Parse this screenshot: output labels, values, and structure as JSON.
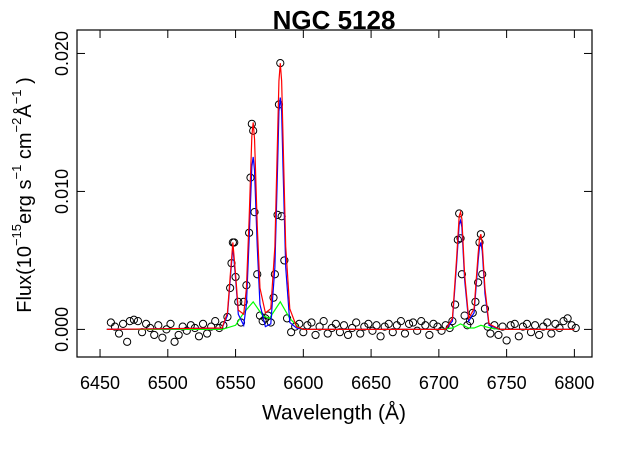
{
  "chart_data": {
    "type": "spectrum",
    "title": "NGC 5128",
    "xlabel": "Wavelength (Å)",
    "ylabel_parts": [
      "Flux(10",
      "−15",
      "erg s",
      "−1",
      " cm",
      "−2",
      "Å",
      "−1",
      " )"
    ],
    "xlim": [
      6433,
      6813
    ],
    "ylim": [
      -0.002,
      0.0217
    ],
    "xticks": [
      6450,
      6500,
      6550,
      6600,
      6650,
      6700,
      6750,
      6800
    ],
    "yticks": [
      {
        "value": 0,
        "label": "0.000"
      },
      {
        "value": 0.01,
        "label": "0.010"
      },
      {
        "value": 0.02,
        "label": "0.020"
      }
    ],
    "series": [
      {
        "mode": "markers",
        "color": "#000000",
        "x": [
          6458,
          6461,
          6464,
          6467,
          6470,
          6472,
          6475,
          6478,
          6481,
          6484,
          6487,
          6490,
          6493,
          6496,
          6499,
          6502,
          6505,
          6508,
          6511,
          6514,
          6517,
          6520,
          6523,
          6526,
          6529,
          6532,
          6535,
          6538,
          6541,
          6544,
          6546,
          6547,
          6548,
          6549,
          6550,
          6552,
          6554,
          6556,
          6558,
          6560,
          6561,
          6562,
          6563,
          6564,
          6566,
          6568,
          6570,
          6572,
          6574,
          6576,
          6578,
          6579,
          6581,
          6582,
          6583,
          6584,
          6586,
          6588,
          6591,
          6594,
          6597,
          6600,
          6603,
          6606,
          6609,
          6612,
          6615,
          6618,
          6621,
          6624,
          6627,
          6630,
          6633,
          6636,
          6639,
          6642,
          6645,
          6648,
          6651,
          6654,
          6657,
          6660,
          6663,
          6666,
          6669,
          6672,
          6675,
          6678,
          6681,
          6684,
          6687,
          6690,
          6693,
          6696,
          6699,
          6702,
          6705,
          6708,
          6710,
          6712,
          6714,
          6715,
          6716,
          6717,
          6719,
          6721,
          6723,
          6725,
          6727,
          6729,
          6730,
          6731,
          6732,
          6734,
          6736,
          6738,
          6741,
          6744,
          6747,
          6750,
          6753,
          6756,
          6759,
          6762,
          6765,
          6768,
          6771,
          6774,
          6777,
          6780,
          6783,
          6786,
          6789,
          6792,
          6795,
          6798,
          6801
        ],
        "values": [
          0.0005,
          0.0002,
          -0.0003,
          0.0004,
          -0.0009,
          0.0006,
          0.0007,
          0.0006,
          -0.0002,
          0.0004,
          0.0001,
          -0.0004,
          0.0003,
          -0.0006,
          0.0,
          0.0004,
          -0.0009,
          -0.0004,
          0.0002,
          -0.0001,
          0.0003,
          0.0001,
          -0.0005,
          0.0004,
          -0.0003,
          0.0002,
          0.0006,
          0.0001,
          0.0003,
          0.0009,
          0.003,
          0.0048,
          0.0063,
          0.0063,
          0.0038,
          0.002,
          0.0005,
          0.002,
          0.0032,
          0.007,
          0.011,
          0.0149,
          0.0144,
          0.0085,
          0.004,
          0.001,
          0.0006,
          0.0008,
          0.001,
          0.0005,
          0.0023,
          0.004,
          0.0083,
          0.0163,
          0.0193,
          0.0082,
          0.005,
          0.0008,
          -0.0002,
          0.0002,
          0.0004,
          -0.0002,
          0.0003,
          0.0005,
          -0.0004,
          0.0002,
          0.0006,
          -0.0003,
          0.0001,
          0.0004,
          -0.0002,
          0.0003,
          -0.0004,
          0.0001,
          0.0005,
          -0.0003,
          0.0002,
          0.0004,
          -0.0001,
          0.0003,
          -0.0005,
          0.0002,
          0.0004,
          -0.0002,
          0.0003,
          0.0006,
          -0.0003,
          0.0004,
          0.0005,
          -0.0001,
          0.0006,
          0.0003,
          -0.0004,
          0.0004,
          0.0002,
          -0.0001,
          0.0003,
          0.0001,
          0.0006,
          0.0018,
          0.0065,
          0.0084,
          0.0066,
          0.004,
          0.001,
          0.0003,
          0.0006,
          0.0012,
          0.002,
          0.0034,
          0.0063,
          0.0069,
          0.004,
          0.0015,
          0.0002,
          -0.0003,
          0.0003,
          -0.0004,
          0.0002,
          -0.0008,
          0.0003,
          0.0004,
          -0.0005,
          0.0002,
          0.0004,
          -0.0002,
          0.0003,
          -0.0004,
          0.0002,
          0.0005,
          -0.0003,
          0.0004,
          0.0001,
          0.0006,
          0.0008,
          0.0003,
          0.0001
        ]
      },
      {
        "mode": "lines",
        "color": "#00ff00",
        "x": [
          6455,
          6540,
          6550,
          6556,
          6563,
          6570,
          6575,
          6583,
          6590,
          6598,
          6700,
          6710,
          6716,
          6722,
          6726,
          6731,
          6738,
          6745,
          6800
        ],
        "values": [
          0,
          0,
          0.0003,
          0.0012,
          0.002,
          0.001,
          0.0008,
          0.002,
          0.0008,
          0,
          0,
          0.0001,
          0.0004,
          0.0001,
          0.0001,
          0.0003,
          0.0001,
          0,
          0
        ]
      },
      {
        "mode": "lines",
        "color": "#0000ff",
        "x": [
          6455,
          6540,
          6544,
          6546,
          6548,
          6550,
          6552,
          6556,
          6558,
          6560,
          6562,
          6563,
          6564,
          6566,
          6568,
          6572,
          6576,
          6579,
          6581,
          6582,
          6583,
          6584,
          6585,
          6587,
          6590,
          6595,
          6600,
          6705,
          6710,
          6713,
          6715,
          6716,
          6717,
          6719,
          6722,
          6726,
          6729,
          6730,
          6731,
          6732,
          6734,
          6737,
          6745,
          6800
        ],
        "values": [
          0,
          0.0001,
          0.001,
          0.0035,
          0.006,
          0.0037,
          0.0011,
          0.0003,
          0.0018,
          0.0065,
          0.0118,
          0.0125,
          0.0115,
          0.006,
          0.0018,
          0.0002,
          0.0004,
          0.0045,
          0.0118,
          0.0158,
          0.0168,
          0.0158,
          0.0118,
          0.0045,
          0.0005,
          0.0001,
          0,
          0,
          0.0006,
          0.0046,
          0.0076,
          0.0079,
          0.0074,
          0.0036,
          0.0006,
          0.0012,
          0.005,
          0.006,
          0.0063,
          0.0057,
          0.0026,
          0.0003,
          0,
          0
        ]
      },
      {
        "mode": "lines",
        "color": "#ff0000",
        "x": [
          6455,
          6540,
          6544,
          6546,
          6548,
          6550,
          6552,
          6556,
          6558,
          6560,
          6562,
          6563,
          6564,
          6566,
          6568,
          6572,
          6576,
          6579,
          6581,
          6582,
          6583,
          6584,
          6585,
          6587,
          6590,
          6595,
          6600,
          6705,
          6710,
          6713,
          6715,
          6716,
          6717,
          6719,
          6722,
          6726,
          6729,
          6730,
          6731,
          6732,
          6734,
          6737,
          6745,
          6800
        ],
        "values": [
          0,
          0.0001,
          0.0012,
          0.0038,
          0.0063,
          0.004,
          0.0014,
          0.0011,
          0.003,
          0.008,
          0.014,
          0.015,
          0.0138,
          0.0075,
          0.003,
          0.0012,
          0.0015,
          0.006,
          0.014,
          0.018,
          0.0193,
          0.018,
          0.014,
          0.006,
          0.0015,
          0.0002,
          0,
          0,
          0.0008,
          0.005,
          0.0082,
          0.0085,
          0.008,
          0.004,
          0.0008,
          0.0015,
          0.0055,
          0.0066,
          0.0069,
          0.0062,
          0.003,
          0.0004,
          0,
          0
        ]
      }
    ]
  }
}
